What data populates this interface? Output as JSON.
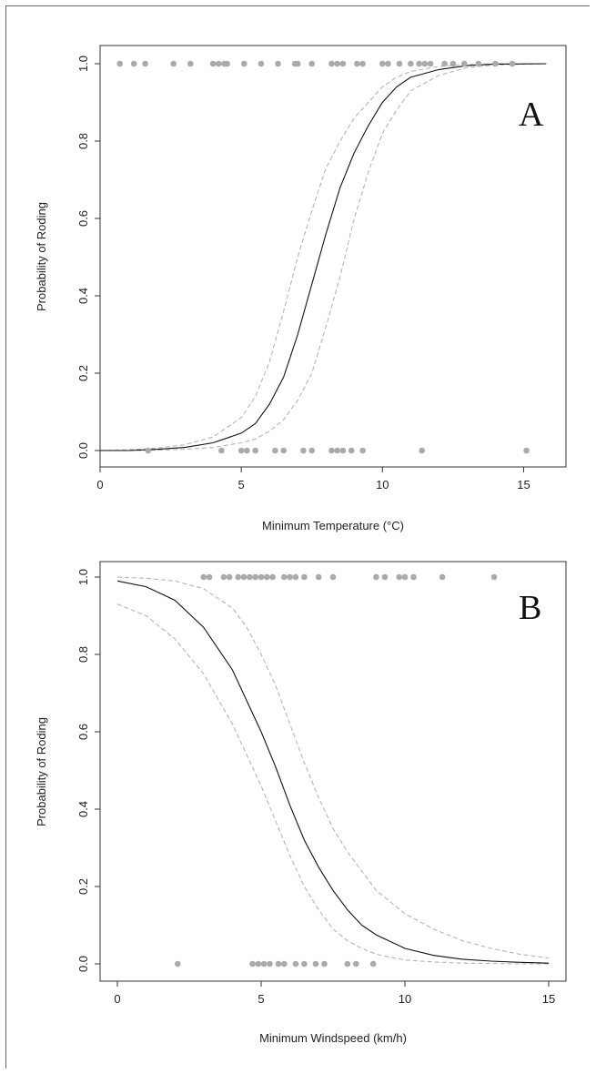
{
  "colors": {
    "fit_line": "#111111",
    "ci_line": "#b5b5b5",
    "points": "#aaaaaa",
    "axis": "#333333"
  },
  "chart_data": [
    {
      "type": "scatter",
      "panel_label": "A",
      "title": "",
      "xlabel": "Minimum Temperature (°C)",
      "ylabel": "Probability of Roding",
      "xlim": [
        0,
        16.5
      ],
      "ylim": [
        0,
        1
      ],
      "xticks": [
        0,
        5,
        10,
        15
      ],
      "yticks": [
        0.0,
        0.2,
        0.4,
        0.6,
        0.8,
        1.0
      ],
      "xtick_labels": [
        "0",
        "5",
        "10",
        "15"
      ],
      "ytick_labels": [
        "0.0",
        "0.2",
        "0.4",
        "0.6",
        "0.8",
        "1.0"
      ],
      "grid": false,
      "legend": "none",
      "fit_curve": {
        "x": [
          0,
          1,
          2,
          3,
          4,
          5,
          5.5,
          6,
          6.5,
          7,
          7.5,
          8,
          8.5,
          9,
          9.5,
          10,
          10.5,
          11,
          12,
          13,
          14,
          15.8
        ],
        "y": [
          0.0,
          0.0,
          0.003,
          0.008,
          0.02,
          0.045,
          0.07,
          0.12,
          0.19,
          0.3,
          0.43,
          0.56,
          0.68,
          0.77,
          0.84,
          0.9,
          0.94,
          0.965,
          0.985,
          0.995,
          0.999,
          1.0
        ]
      },
      "ci_upper": {
        "x": [
          0,
          1,
          2,
          3,
          4,
          5,
          5.5,
          6,
          6.5,
          7,
          7.5,
          8,
          8.5,
          9,
          9.5,
          10,
          10.5,
          11,
          12,
          13,
          14,
          15.8
        ],
        "y": [
          0.0,
          0.002,
          0.006,
          0.015,
          0.035,
          0.085,
          0.14,
          0.23,
          0.36,
          0.5,
          0.62,
          0.73,
          0.8,
          0.86,
          0.9,
          0.94,
          0.965,
          0.98,
          0.993,
          0.998,
          1.0,
          1.0
        ]
      },
      "ci_lower": {
        "x": [
          0,
          1,
          2,
          3,
          4,
          5,
          5.5,
          6,
          6.5,
          7,
          7.5,
          8,
          8.5,
          9,
          9.5,
          10,
          10.5,
          11,
          12,
          13,
          14,
          15.8
        ],
        "y": [
          0.0,
          0.0,
          0.001,
          0.003,
          0.008,
          0.02,
          0.03,
          0.05,
          0.08,
          0.13,
          0.2,
          0.32,
          0.45,
          0.6,
          0.72,
          0.82,
          0.88,
          0.93,
          0.97,
          0.99,
          0.997,
          1.0
        ]
      },
      "observations_y1": [
        0.7,
        1.2,
        1.6,
        2.6,
        3.2,
        4.0,
        4.2,
        4.4,
        4.5,
        5.1,
        5.7,
        6.3,
        6.9,
        7.0,
        7.5,
        8.2,
        8.4,
        8.6,
        9.1,
        9.3,
        10.0,
        10.2,
        10.6,
        11.0,
        11.3,
        11.5,
        11.7,
        12.2,
        12.5,
        12.9,
        13.4,
        14.0,
        14.6
      ],
      "observations_y0": [
        1.7,
        4.3,
        5.0,
        5.2,
        5.5,
        6.2,
        6.5,
        7.2,
        7.5,
        8.2,
        8.4,
        8.6,
        8.9,
        9.3,
        11.4,
        15.1
      ]
    },
    {
      "type": "scatter",
      "panel_label": "B",
      "title": "",
      "xlabel": "Minimum Windspeed (km/h)",
      "ylabel": "Probability of Roding",
      "xlim": [
        -0.6,
        15.6
      ],
      "ylim": [
        0,
        1
      ],
      "xticks": [
        0,
        5,
        10,
        15
      ],
      "yticks": [
        0.0,
        0.2,
        0.4,
        0.6,
        0.8,
        1.0
      ],
      "xtick_labels": [
        "0",
        "5",
        "10",
        "15"
      ],
      "ytick_labels": [
        "0.0",
        "0.2",
        "0.4",
        "0.6",
        "0.8",
        "1.0"
      ],
      "grid": false,
      "legend": "none",
      "fit_curve": {
        "x": [
          0,
          1,
          2,
          3,
          4,
          4.5,
          5,
          5.5,
          6,
          6.5,
          7,
          7.5,
          8,
          8.5,
          9,
          10,
          11,
          12,
          13,
          14,
          15
        ],
        "y": [
          0.99,
          0.975,
          0.94,
          0.87,
          0.76,
          0.68,
          0.6,
          0.51,
          0.41,
          0.32,
          0.25,
          0.19,
          0.14,
          0.1,
          0.075,
          0.04,
          0.022,
          0.012,
          0.007,
          0.004,
          0.002
        ]
      },
      "ci_upper": {
        "x": [
          0,
          1,
          2,
          3,
          4,
          4.5,
          5,
          5.5,
          6,
          6.5,
          7,
          7.5,
          8,
          8.5,
          9,
          10,
          11,
          12,
          13,
          14,
          15
        ],
        "y": [
          1.0,
          0.997,
          0.99,
          0.97,
          0.92,
          0.87,
          0.8,
          0.72,
          0.62,
          0.52,
          0.43,
          0.35,
          0.29,
          0.24,
          0.19,
          0.13,
          0.09,
          0.06,
          0.04,
          0.025,
          0.015
        ]
      },
      "ci_lower": {
        "x": [
          0,
          1,
          2,
          3,
          4,
          4.5,
          5,
          5.5,
          6,
          6.5,
          7,
          7.5,
          8,
          8.5,
          9,
          10,
          11,
          12,
          13,
          14,
          15
        ],
        "y": [
          0.93,
          0.9,
          0.84,
          0.75,
          0.62,
          0.54,
          0.46,
          0.37,
          0.28,
          0.2,
          0.14,
          0.09,
          0.06,
          0.04,
          0.025,
          0.01,
          0.005,
          0.002,
          0.001,
          0.0,
          0.0
        ]
      },
      "observations_y1": [
        3.0,
        3.2,
        3.7,
        3.9,
        4.2,
        4.4,
        4.6,
        4.8,
        5.0,
        5.2,
        5.4,
        5.8,
        6.0,
        6.2,
        6.5,
        7.0,
        7.5,
        9.0,
        9.3,
        9.8,
        10.0,
        10.3,
        11.3,
        13.1
      ],
      "observations_y0": [
        2.1,
        4.7,
        4.9,
        5.1,
        5.3,
        5.6,
        5.8,
        6.2,
        6.5,
        6.9,
        7.2,
        8.0,
        8.3,
        8.9
      ]
    }
  ]
}
